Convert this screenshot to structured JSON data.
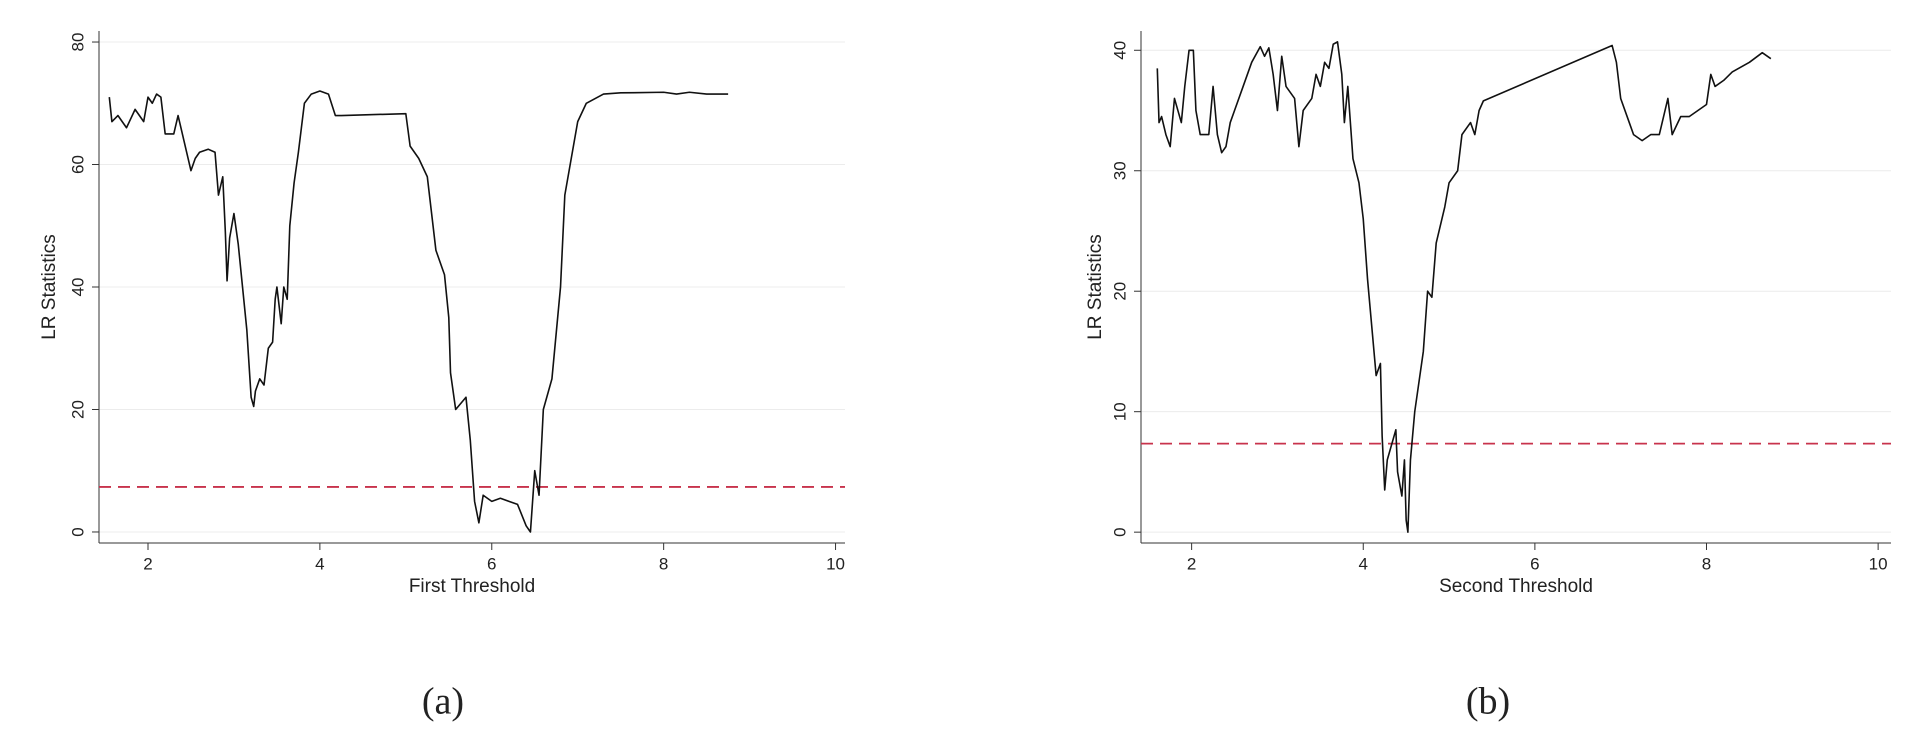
{
  "chart_data": [
    {
      "type": "line",
      "xlabel": "First Threshold",
      "ylabel": "LR Statistics",
      "caption": "(a)",
      "x": [
        1.55,
        1.58,
        1.65,
        1.75,
        1.85,
        1.95,
        2.0,
        2.05,
        2.1,
        2.15,
        2.2,
        2.3,
        2.35,
        2.45,
        2.5,
        2.55,
        2.6,
        2.7,
        2.78,
        2.82,
        2.87,
        2.9,
        2.92,
        2.95,
        3.0,
        3.05,
        3.1,
        3.15,
        3.2,
        3.23,
        3.25,
        3.3,
        3.35,
        3.4,
        3.45,
        3.48,
        3.5,
        3.55,
        3.58,
        3.62,
        3.65,
        3.7,
        3.75,
        3.82,
        3.9,
        4.0,
        4.1,
        4.18,
        4.25,
        5.0,
        5.05,
        5.15,
        5.25,
        5.3,
        5.35,
        5.45,
        5.5,
        5.52,
        5.58,
        5.7,
        5.75,
        5.8,
        5.85,
        5.9,
        6.0,
        6.1,
        6.2,
        6.3,
        6.4,
        6.45,
        6.5,
        6.55,
        6.6,
        6.7,
        6.8,
        6.85,
        6.95,
        7.0,
        7.1,
        7.3,
        7.5,
        8.0,
        8.15,
        8.3,
        8.5,
        8.6,
        8.75
      ],
      "values": [
        71,
        67,
        68,
        66,
        69,
        67,
        71,
        70,
        71.5,
        71,
        65,
        65,
        68,
        62,
        59,
        61,
        62,
        62.5,
        62,
        55,
        58,
        49,
        41,
        48,
        52,
        47,
        40,
        33,
        22,
        20.5,
        23,
        25,
        24,
        30,
        31,
        38,
        40,
        34,
        40,
        38,
        50,
        57,
        62,
        70,
        71.5,
        72,
        71.5,
        68,
        68,
        68.3,
        63,
        61,
        58,
        52,
        46,
        42,
        35,
        26,
        20,
        22,
        15,
        5,
        1.5,
        6,
        5,
        5.5,
        5,
        4.5,
        1,
        0,
        10,
        6,
        20,
        25,
        40,
        55,
        63,
        67,
        70,
        71.5,
        71.7,
        71.8,
        71.5,
        71.8,
        71.5,
        71.5,
        71.5
      ],
      "color": "#111111",
      "reference_line": {
        "value": 7.35,
        "color": "#c8334c"
      },
      "xlim": [
        1.43,
        10.11
      ],
      "ylim": [
        -1.8,
        81.8
      ],
      "xticks": [
        2,
        4,
        6,
        8,
        10
      ],
      "yticks": [
        0,
        20,
        40,
        60,
        80
      ],
      "grid": true
    },
    {
      "type": "line",
      "xlabel": "Second Threshold",
      "ylabel": "LR Statistics",
      "caption": "(b)",
      "x": [
        1.6,
        1.62,
        1.65,
        1.7,
        1.75,
        1.8,
        1.88,
        1.92,
        1.97,
        2.02,
        2.05,
        2.1,
        2.2,
        2.25,
        2.3,
        2.35,
        2.4,
        2.45,
        2.5,
        2.6,
        2.7,
        2.8,
        2.85,
        2.9,
        2.95,
        3.0,
        3.05,
        3.1,
        3.2,
        3.25,
        3.3,
        3.4,
        3.45,
        3.5,
        3.55,
        3.6,
        3.65,
        3.7,
        3.75,
        3.78,
        3.82,
        3.88,
        3.95,
        4.0,
        4.05,
        4.1,
        4.15,
        4.2,
        4.22,
        4.25,
        4.28,
        4.32,
        4.38,
        4.4,
        4.45,
        4.48,
        4.5,
        4.52,
        4.55,
        4.6,
        4.7,
        4.75,
        4.8,
        4.85,
        4.95,
        5.0,
        5.1,
        5.15,
        5.25,
        5.3,
        5.35,
        5.4,
        6.9,
        6.95,
        7.0,
        7.1,
        7.15,
        7.25,
        7.35,
        7.45,
        7.55,
        7.6,
        7.7,
        7.8,
        7.9,
        8.0,
        8.05,
        8.1,
        8.2,
        8.3,
        8.5,
        8.65,
        8.75
      ],
      "values": [
        38.5,
        34,
        34.5,
        33,
        32,
        36,
        34,
        37,
        40,
        40,
        35,
        33,
        33,
        37,
        33,
        31.5,
        32,
        34,
        35,
        37,
        39,
        40.3,
        39.5,
        40.2,
        38,
        35,
        39.5,
        37,
        36,
        32,
        35,
        36,
        38,
        37,
        39,
        38.5,
        40.5,
        40.7,
        38,
        34,
        37,
        31,
        29,
        26,
        21,
        17,
        13,
        14,
        8,
        3.5,
        6,
        7,
        8.5,
        5,
        3,
        6,
        1,
        0,
        6,
        10,
        15,
        20,
        19.5,
        24,
        27,
        29,
        30,
        33,
        34,
        33,
        35,
        35.8,
        40.4,
        39,
        36,
        34,
        33,
        32.5,
        33,
        33,
        36,
        33,
        34.5,
        34.5,
        35,
        35.5,
        38,
        37,
        37.5,
        38.2,
        39,
        39.8,
        39.3
      ],
      "color": "#111111",
      "reference_line": {
        "value": 7.35,
        "color": "#c8334c"
      },
      "xlim": [
        1.41,
        10.15
      ],
      "ylim": [
        -0.9,
        41.6
      ],
      "xticks": [
        2,
        4,
        6,
        8,
        10
      ],
      "yticks": [
        0,
        10,
        20,
        30,
        40
      ],
      "grid": true
    }
  ]
}
